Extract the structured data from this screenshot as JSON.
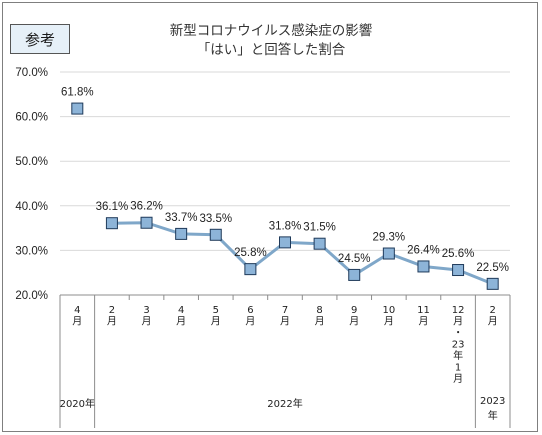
{
  "badge": "参考",
  "title_line1": "新型コロナウイルス感染症の影響",
  "title_line2": "「はい」と回答した割合",
  "chart_data": {
    "type": "line",
    "title": "新型コロナウイルス感染症の影響 「はい」と回答した割合",
    "categories": [
      "4月",
      "2月",
      "3月",
      "4月",
      "5月",
      "6月",
      "7月",
      "8月",
      "9月",
      "10月",
      "11月",
      "12月・23年1月",
      "2月"
    ],
    "category_text": [
      "4\n月",
      "2\n月",
      "3\n月",
      "4\n月",
      "5\n月",
      "6\n月",
      "7\n月",
      "8\n月",
      "9\n月",
      "10\n月",
      "11\n月",
      "12\n月\n・\n23\n年\n1\n月",
      "2\n月"
    ],
    "values": [
      61.8,
      36.1,
      36.2,
      33.7,
      33.5,
      25.8,
      31.8,
      31.5,
      24.5,
      29.3,
      26.4,
      25.6,
      22.5
    ],
    "value_labels": [
      "61.8%",
      "36.1%",
      "36.2%",
      "33.7%",
      "33.5%",
      "25.8%",
      "31.8%",
      "31.5%",
      "24.5%",
      "29.3%",
      "26.4%",
      "25.6%",
      "22.5%"
    ],
    "connected_from_index": 1,
    "ylim": [
      20,
      70
    ],
    "yticks": [
      "20.0%",
      "30.0%",
      "40.0%",
      "50.0%",
      "60.0%",
      "70.0%"
    ],
    "grid": true,
    "year_groups": [
      {
        "label": "2020年",
        "start": 0,
        "end": 0
      },
      {
        "label": "2022年",
        "start": 1,
        "end": 11
      },
      {
        "label_lines": [
          "2023",
          "年"
        ],
        "start": 12,
        "end": 12
      }
    ],
    "colors": {
      "line": "#7fa7c9",
      "marker_fill": "#8db4d8",
      "marker_edge": "#1f3a5a",
      "grid": "#d9d9d9"
    }
  }
}
